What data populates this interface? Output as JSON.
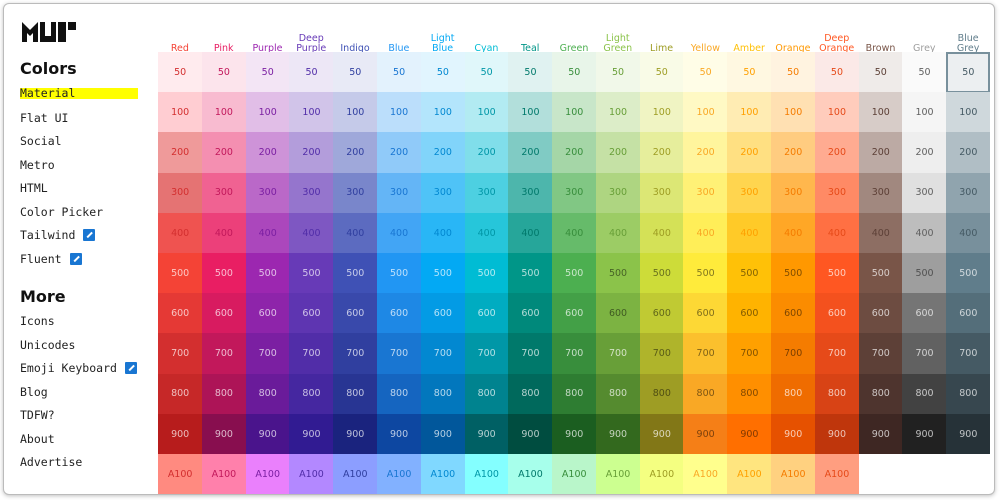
{
  "sidebar": {
    "sections": [
      {
        "title": "Colors",
        "items": [
          "Material",
          "Flat UI",
          "Social",
          "Metro",
          "HTML",
          "Color Picker",
          "Tailwind",
          "Fluent"
        ]
      },
      {
        "title": "More",
        "items": [
          "Icons",
          "Unicodes",
          "Emoji Keyboard",
          "Blog",
          "TDFW?",
          "About",
          "Advertise"
        ]
      }
    ]
  },
  "palette": {
    "shades": [
      "50",
      "100",
      "200",
      "300",
      "400",
      "500",
      "600",
      "700",
      "800",
      "900",
      "A100"
    ],
    "columns": [
      {
        "name": "Red",
        "colors": [
          "#ffebee",
          "#ffcdd2",
          "#ef9a9a",
          "#e57373",
          "#ef5350",
          "#f44336",
          "#e53935",
          "#d32f2f",
          "#c62828",
          "#b71c1c",
          "#ff8a80"
        ]
      },
      {
        "name": "Pink",
        "colors": [
          "#fce4ec",
          "#f8bbd0",
          "#f48fb1",
          "#f06292",
          "#ec407a",
          "#e91e63",
          "#d81b60",
          "#c2185b",
          "#ad1457",
          "#880e4f",
          "#ff80ab"
        ]
      },
      {
        "name": "Purple",
        "colors": [
          "#f3e5f5",
          "#e1bee7",
          "#ce93d8",
          "#ba68c8",
          "#ab47bc",
          "#9c27b0",
          "#8e24aa",
          "#7b1fa2",
          "#6a1b9a",
          "#4a148c",
          "#ea80fc"
        ]
      },
      {
        "name": "Deep Purple",
        "colors": [
          "#ede7f6",
          "#d1c4e9",
          "#b39ddb",
          "#9575cd",
          "#7e57c2",
          "#673ab7",
          "#5e35b1",
          "#512da8",
          "#4527a0",
          "#311b92",
          "#b388ff"
        ]
      },
      {
        "name": "Indigo",
        "colors": [
          "#e8eaf6",
          "#c5cae9",
          "#9fa8da",
          "#7986cb",
          "#5c6bc0",
          "#3f51b5",
          "#3949ab",
          "#303f9f",
          "#283593",
          "#1a237e",
          "#8c9eff"
        ]
      },
      {
        "name": "Blue",
        "colors": [
          "#e3f2fd",
          "#bbdefb",
          "#90caf9",
          "#64b5f6",
          "#42a5f5",
          "#2196f3",
          "#1e88e5",
          "#1976d2",
          "#1565c0",
          "#0d47a1",
          "#82b1ff"
        ]
      },
      {
        "name": "Light Blue",
        "colors": [
          "#e1f5fe",
          "#b3e5fc",
          "#81d4fa",
          "#4fc3f7",
          "#29b6f6",
          "#03a9f4",
          "#039be5",
          "#0288d1",
          "#0277bd",
          "#01579b",
          "#80d8ff"
        ]
      },
      {
        "name": "Cyan",
        "colors": [
          "#e0f7fa",
          "#b2ebf2",
          "#80deea",
          "#4dd0e1",
          "#26c6da",
          "#00bcd4",
          "#00acc1",
          "#0097a7",
          "#00838f",
          "#006064",
          "#84ffff"
        ]
      },
      {
        "name": "Teal",
        "colors": [
          "#e0f2f1",
          "#b2dfdb",
          "#80cbc4",
          "#4db6ac",
          "#26a69a",
          "#009688",
          "#00897b",
          "#00796b",
          "#00695c",
          "#004d40",
          "#a7ffeb"
        ]
      },
      {
        "name": "Green",
        "colors": [
          "#e8f5e9",
          "#c8e6c9",
          "#a5d6a7",
          "#81c784",
          "#66bb6a",
          "#4caf50",
          "#43a047",
          "#388e3c",
          "#2e7d32",
          "#1b5e20",
          "#b9f6ca"
        ]
      },
      {
        "name": "Light Green",
        "colors": [
          "#f1f8e9",
          "#dcedc8",
          "#c5e1a5",
          "#aed581",
          "#9ccc65",
          "#8bc34a",
          "#7cb342",
          "#689f38",
          "#558b2f",
          "#33691e",
          "#ccff90"
        ]
      },
      {
        "name": "Lime",
        "colors": [
          "#f9fbe7",
          "#f0f4c3",
          "#e6ee9c",
          "#dce775",
          "#d4e157",
          "#cddc39",
          "#c0ca33",
          "#afb42b",
          "#9e9d24",
          "#827717",
          "#f4ff81"
        ]
      },
      {
        "name": "Yellow",
        "colors": [
          "#fffde7",
          "#fff9c4",
          "#fff59d",
          "#fff176",
          "#ffee58",
          "#ffeb3b",
          "#fdd835",
          "#fbc02d",
          "#f9a825",
          "#f57f17",
          "#ffff8d"
        ]
      },
      {
        "name": "Amber",
        "colors": [
          "#fff8e1",
          "#ffecb3",
          "#ffe082",
          "#ffd54f",
          "#ffca28",
          "#ffc107",
          "#ffb300",
          "#ffa000",
          "#ff8f00",
          "#ff6f00",
          "#ffe57f"
        ]
      },
      {
        "name": "Orange",
        "colors": [
          "#fff3e0",
          "#ffe0b2",
          "#ffcc80",
          "#ffb74d",
          "#ffa726",
          "#ff9800",
          "#fb8c00",
          "#f57c00",
          "#ef6c00",
          "#e65100",
          "#ffd180"
        ]
      },
      {
        "name": "Deep Orange",
        "colors": [
          "#fbe9e7",
          "#ffccbc",
          "#ffab91",
          "#ff8a65",
          "#ff7043",
          "#ff5722",
          "#f4511e",
          "#e64a19",
          "#d84315",
          "#bf360c",
          "#ff9e80"
        ]
      },
      {
        "name": "Brown",
        "colors": [
          "#efebe9",
          "#d7ccc8",
          "#bcaaa4",
          "#a1887f",
          "#8d6e63",
          "#795548",
          "#6d4c41",
          "#5d4037",
          "#4e342e",
          "#3e2723"
        ]
      },
      {
        "name": "Grey",
        "colors": [
          "#fafafa",
          "#f5f5f5",
          "#eeeeee",
          "#e0e0e0",
          "#bdbdbd",
          "#9e9e9e",
          "#757575",
          "#616161",
          "#424242",
          "#212121"
        ]
      },
      {
        "name": "Blue Grey",
        "colors": [
          "#eceff1",
          "#cfd8dc",
          "#b0bec5",
          "#90a4ae",
          "#78909c",
          "#607d8b",
          "#546e7a",
          "#455a64",
          "#37474f",
          "#263238"
        ]
      }
    ]
  }
}
